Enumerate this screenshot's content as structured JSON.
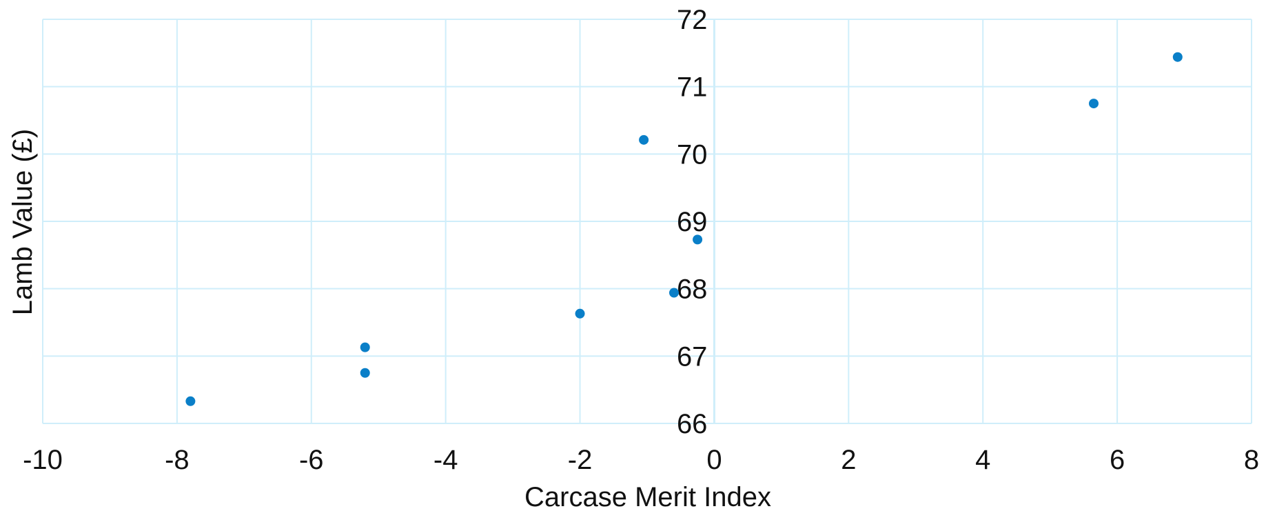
{
  "chart_data": {
    "type": "scatter",
    "title": "",
    "xlabel": "Carcase Merit Index",
    "ylabel": "Lamb Value (£)",
    "xlim": [
      -10,
      8
    ],
    "ylim": [
      66,
      72
    ],
    "xticks": [
      "-10",
      "-8",
      "-6",
      "-4",
      "-2",
      "0",
      "2",
      "4",
      "6",
      "8"
    ],
    "yticks": [
      "66",
      "67",
      "68",
      "69",
      "70",
      "71",
      "72"
    ],
    "grid": true,
    "legend": "none",
    "colors": {
      "point": "#0a7fc8",
      "grid": "#cfeefa"
    },
    "series": [
      {
        "points": [
          {
            "x": -7.8,
            "y": 66.33
          },
          {
            "x": -5.2,
            "y": 66.75
          },
          {
            "x": -5.2,
            "y": 67.13
          },
          {
            "x": -2.0,
            "y": 67.63
          },
          {
            "x": -1.05,
            "y": 70.21
          },
          {
            "x": -0.6,
            "y": 67.94
          },
          {
            "x": -0.25,
            "y": 68.73
          },
          {
            "x": 5.65,
            "y": 70.75
          },
          {
            "x": 6.9,
            "y": 71.44
          }
        ]
      }
    ]
  }
}
